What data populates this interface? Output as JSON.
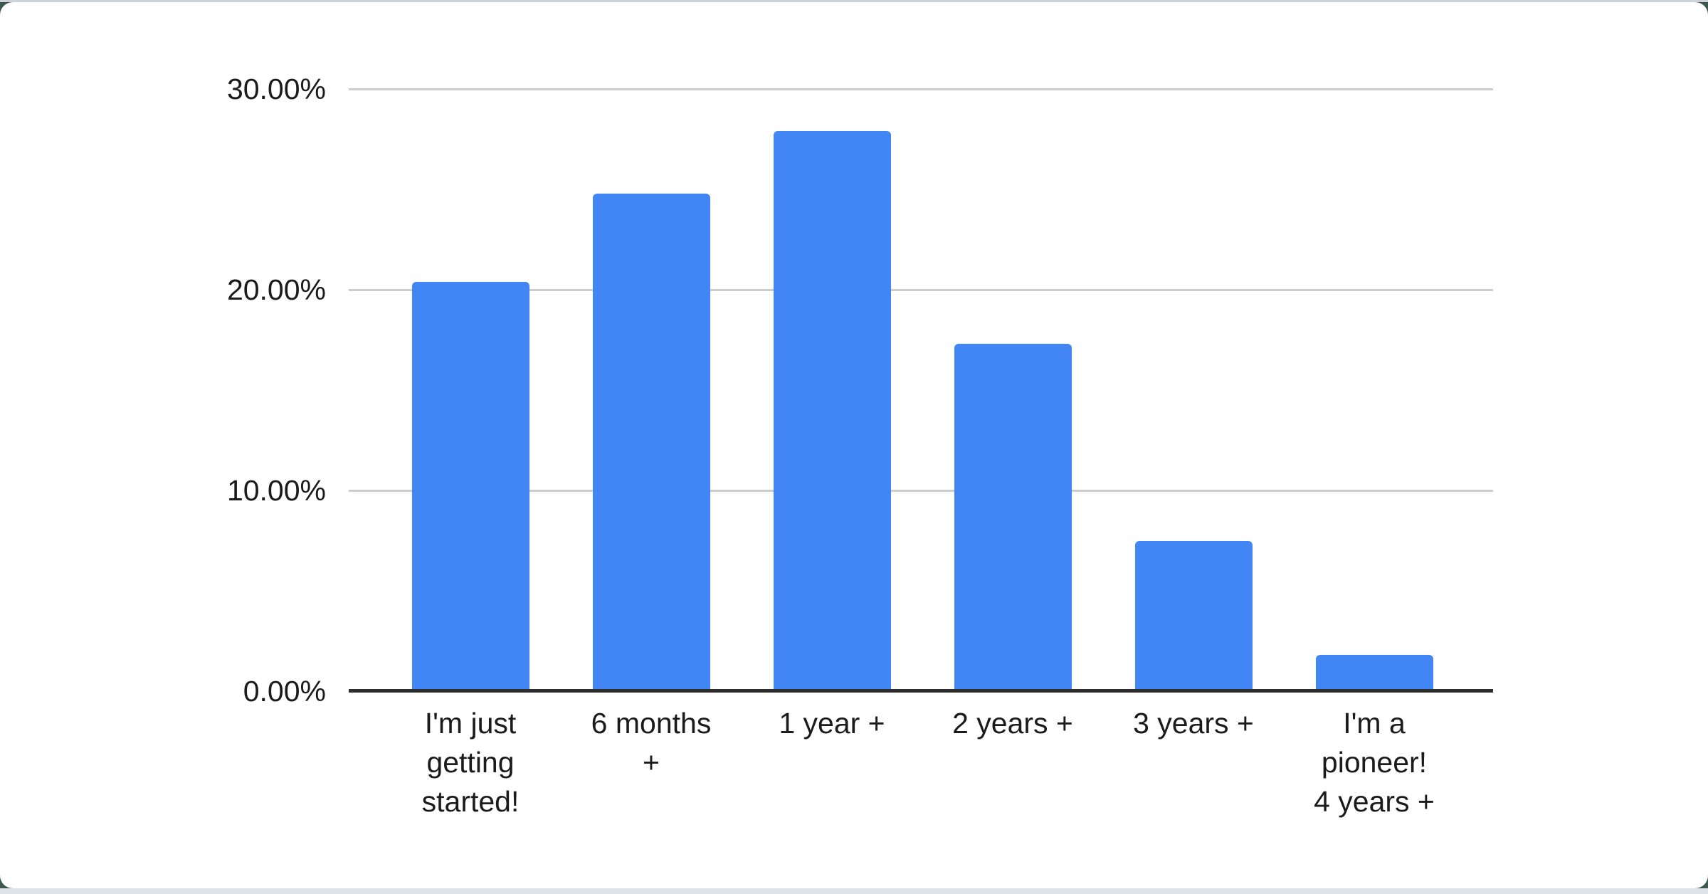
{
  "page": {
    "background_color": "#3d594e",
    "card_color": "#ffffff",
    "top_edge_color": "#ccd2d8",
    "bottom_strip_color": "#dde2e7"
  },
  "chart_data": {
    "type": "bar",
    "categories": [
      "I'm just getting started!",
      "6 months +",
      "1 year +",
      "2 years +",
      "3 years +",
      "I'm a pioneer! 4 years +"
    ],
    "category_lines": [
      [
        "I'm just",
        "getting",
        "started!"
      ],
      [
        "6 months",
        "+"
      ],
      [
        "1 year +"
      ],
      [
        "2 years +"
      ],
      [
        "3 years +"
      ],
      [
        "I'm a",
        "pioneer!",
        "4 years +"
      ]
    ],
    "values": [
      20.4,
      24.8,
      27.9,
      17.3,
      7.5,
      1.8
    ],
    "unit": "%",
    "yticks": [
      {
        "value": 0,
        "label": "0.00%"
      },
      {
        "value": 10,
        "label": "10.00%"
      },
      {
        "value": 20,
        "label": "20.00%"
      },
      {
        "value": 30,
        "label": "30.00%"
      }
    ],
    "ylim": [
      0,
      30
    ],
    "grid": true,
    "legend": "none",
    "bar_color": "#4285f4",
    "gridline_color": "#cccccc",
    "axis_line_color": "#2d2d2d",
    "label_color": "#1b1b1b"
  }
}
